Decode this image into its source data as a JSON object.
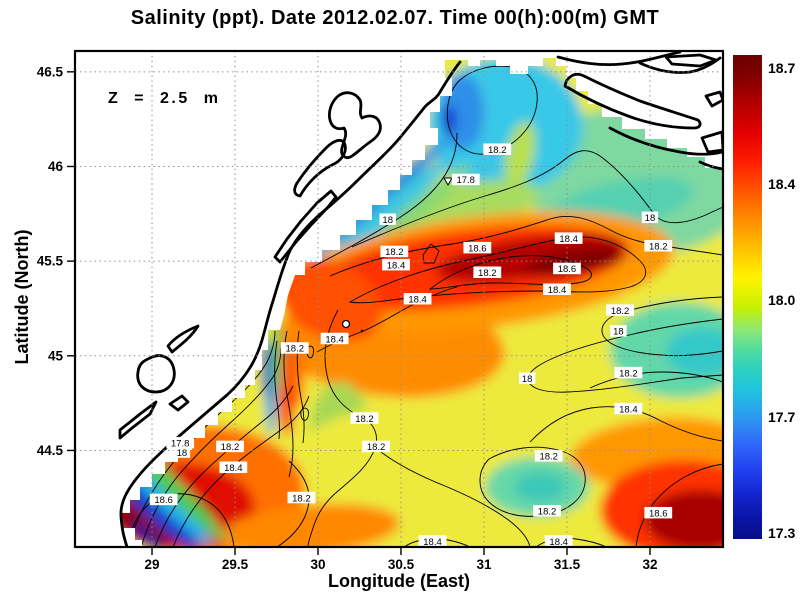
{
  "title": "Salinity (ppt). Date 2012.02.07. Time 00(h):00(m) GMT",
  "depth_annotation": "Z = 2.5 m",
  "axes": {
    "x_label": "Longitude (East)",
    "y_label": "Latitude (North)"
  },
  "chart_data": {
    "type": "heatmap",
    "subtype": "filled-contour-map",
    "title": "Salinity (ppt). Date 2012.02.07. Time 00(h):00(m) GMT",
    "variable": "Salinity",
    "units": "ppt",
    "date": "2012.02.07",
    "time": "00(h):00(m) GMT",
    "depth": "Z = 2.5 m",
    "xlabel": "Longitude (East)",
    "ylabel": "Latitude (North)",
    "xlim": [
      28.536,
      32.44
    ],
    "ylim": [
      43.99,
      46.61
    ],
    "grid": "dotted",
    "colormap": "jet",
    "value_range": [
      17.3,
      18.7
    ],
    "contour_interval": 0.2,
    "x_ticks": [
      {
        "value": 29,
        "label": "29"
      },
      {
        "value": 29.5,
        "label": "29.5"
      },
      {
        "value": 30,
        "label": "30"
      },
      {
        "value": 30.5,
        "label": "30.5"
      },
      {
        "value": 31,
        "label": "31"
      },
      {
        "value": 31.5,
        "label": "31.5"
      },
      {
        "value": 32,
        "label": "32"
      }
    ],
    "y_ticks": [
      {
        "value": 44.5,
        "label": "44.5"
      },
      {
        "value": 45,
        "label": "45"
      },
      {
        "value": 45.5,
        "label": "45.5"
      },
      {
        "value": 46,
        "label": "46"
      },
      {
        "value": 46.5,
        "label": "46.5"
      }
    ],
    "colorbar_ticks": [
      {
        "value": 18.7,
        "label": "18.7"
      },
      {
        "value": 18.4,
        "label": "18.4"
      },
      {
        "value": 18.0,
        "label": "18.0"
      },
      {
        "value": 17.7,
        "label": "17.7"
      },
      {
        "value": 17.3,
        "label": "17.3"
      }
    ],
    "contour_labels": [
      {
        "v": "18.2",
        "lon": 31.08,
        "lat": 46.09
      },
      {
        "v": "17.8",
        "lon": 30.89,
        "lat": 45.93
      },
      {
        "v": "18",
        "lon": 30.42,
        "lat": 45.72
      },
      {
        "v": "18.2",
        "lon": 30.46,
        "lat": 45.55
      },
      {
        "v": "18.4",
        "lon": 30.47,
        "lat": 45.48
      },
      {
        "v": "18.6",
        "lon": 30.96,
        "lat": 45.57
      },
      {
        "v": "18.2",
        "lon": 31.02,
        "lat": 45.44
      },
      {
        "v": "18.4",
        "lon": 30.6,
        "lat": 45.3
      },
      {
        "v": "18.4",
        "lon": 31.44,
        "lat": 45.35
      },
      {
        "v": "18",
        "lon": 32.0,
        "lat": 45.73
      },
      {
        "v": "18.4",
        "lon": 31.51,
        "lat": 45.62
      },
      {
        "v": "18.2",
        "lon": 32.05,
        "lat": 45.58
      },
      {
        "v": "18.6",
        "lon": 31.5,
        "lat": 45.46
      },
      {
        "v": "18.2",
        "lon": 31.82,
        "lat": 45.24
      },
      {
        "v": "18",
        "lon": 31.81,
        "lat": 45.13
      },
      {
        "v": "18.2",
        "lon": 31.87,
        "lat": 44.91
      },
      {
        "v": "18.4",
        "lon": 31.87,
        "lat": 44.72
      },
      {
        "v": "18.2",
        "lon": 31.39,
        "lat": 44.47
      },
      {
        "v": "18.2",
        "lon": 31.38,
        "lat": 44.18
      },
      {
        "v": "18.6",
        "lon": 32.05,
        "lat": 44.17
      },
      {
        "v": "18.4",
        "lon": 31.45,
        "lat": 44.02
      },
      {
        "v": "18",
        "lon": 31.26,
        "lat": 44.88
      },
      {
        "v": "18.2",
        "lon": 30.28,
        "lat": 44.67
      },
      {
        "v": "18.2",
        "lon": 30.35,
        "lat": 44.52
      },
      {
        "v": "18.2",
        "lon": 29.9,
        "lat": 44.25
      },
      {
        "v": "18.2",
        "lon": 29.86,
        "lat": 45.04
      },
      {
        "v": "18.4",
        "lon": 30.1,
        "lat": 45.09
      },
      {
        "v": "17.8",
        "lon": 29.17,
        "lat": 44.54
      },
      {
        "v": "18",
        "lon": 29.18,
        "lat": 44.49
      },
      {
        "v": "18.2",
        "lon": 29.47,
        "lat": 44.52
      },
      {
        "v": "18.4",
        "lon": 29.49,
        "lat": 44.41
      },
      {
        "v": "18.6",
        "lon": 29.07,
        "lat": 44.24
      },
      {
        "v": "18.4",
        "lon": 30.69,
        "lat": 44.02
      }
    ],
    "point_markers": [
      {
        "type": "triangle-down",
        "lon": 30.78,
        "lat": 45.92
      },
      {
        "type": "circle",
        "lon": 30.17,
        "lat": 45.17
      },
      {
        "type": "dot",
        "lon": 30.27,
        "lat": 45.13
      }
    ],
    "features": [
      "high-salinity band >18.6 ppt stretching ENE along ~45.5N from 30.3E to 31.8E",
      "high-salinity cores >18.6 ppt in SW corner (29.1E,44.2N) and SE corner (32E,44.2N)",
      "fresh coastal strip <17.7 ppt hugging the Danube delta and NW coast",
      "fresher water ~17.8-18.0 ppt in the NE near 31E,46.0N and along 45.1-45.2N from the east"
    ]
  }
}
